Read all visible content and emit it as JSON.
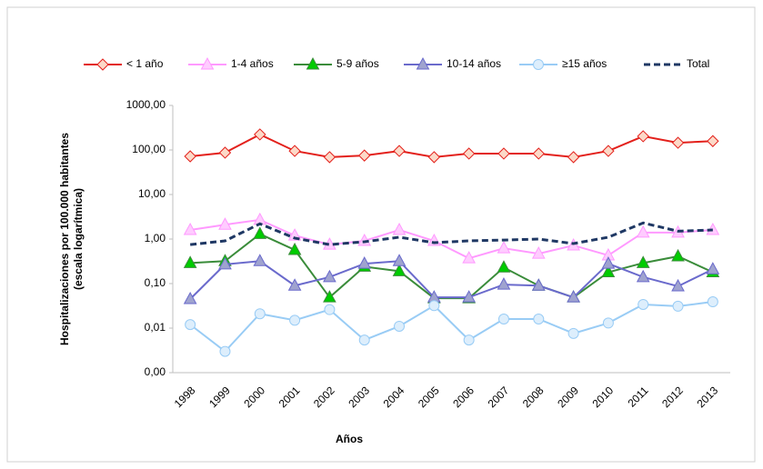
{
  "chart_data": {
    "type": "line",
    "xlabel": "Años",
    "ylabel": [
      "Hospitalizaciones  por 100.000 habitantes",
      "(escala logarítmica)"
    ],
    "categories": [
      "1998",
      "1999",
      "2000",
      "2001",
      "2002",
      "2003",
      "2004",
      "2005",
      "2006",
      "2007",
      "2008",
      "2009",
      "2010",
      "2011",
      "2012",
      "2013"
    ],
    "log_scale": true,
    "ylim": [
      0.001,
      1000
    ],
    "yticks": [
      {
        "value": 0.001,
        "label": "0,00"
      },
      {
        "value": 0.01,
        "label": "0,01"
      },
      {
        "value": 0.1,
        "label": "0,10"
      },
      {
        "value": 1,
        "label": "1,00"
      },
      {
        "value": 10,
        "label": "10,00"
      },
      {
        "value": 100,
        "label": "100,00"
      },
      {
        "value": 1000,
        "label": "1000,00"
      }
    ],
    "legend": "top",
    "series": [
      {
        "name": "< 1 año",
        "color": "#e3201b",
        "marker": "diamond",
        "marker_fill": "#fcd9c8",
        "values": [
          72,
          87,
          223,
          95,
          69,
          75,
          95,
          69,
          83,
          83,
          83,
          69,
          95,
          203,
          145,
          158
        ]
      },
      {
        "name": "1-4 años",
        "color": "#ff99ff",
        "marker": "triangle",
        "marker_fill": "#ffccff",
        "values": [
          1.6,
          2.1,
          2.7,
          1.2,
          0.75,
          0.91,
          1.6,
          0.91,
          0.37,
          0.62,
          0.47,
          0.72,
          0.43,
          1.4,
          1.4,
          1.6
        ]
      },
      {
        "name": "5-9 años",
        "color": "#3a8c3a",
        "marker": "triangle",
        "marker_fill": "#00cc00",
        "values": [
          0.29,
          0.32,
          1.3,
          0.57,
          0.049,
          0.24,
          0.19,
          0.047,
          0.047,
          0.23,
          0.09,
          0.049,
          0.18,
          0.29,
          0.41,
          0.18
        ]
      },
      {
        "name": "10-14 años",
        "color": "#6a6acc",
        "marker": "triangle",
        "marker_fill": "#9fa3cf",
        "values": [
          0.045,
          0.27,
          0.32,
          0.09,
          0.14,
          0.28,
          0.32,
          0.049,
          0.049,
          0.095,
          0.09,
          0.049,
          0.28,
          0.14,
          0.087,
          0.21
        ]
      },
      {
        "name": "≥15 años",
        "color": "#99ccf5",
        "marker": "circle",
        "marker_fill": "#ddeefc",
        "values": [
          0.012,
          0.003,
          0.021,
          0.015,
          0.026,
          0.0054,
          0.011,
          0.032,
          0.0054,
          0.016,
          0.016,
          0.0076,
          0.013,
          0.034,
          0.031,
          0.039
        ]
      },
      {
        "name": "Total",
        "color": "#1f3864",
        "dashed": true,
        "values": [
          0.75,
          0.91,
          2.2,
          1.05,
          0.75,
          0.87,
          1.1,
          0.83,
          0.91,
          0.95,
          1.0,
          0.79,
          1.1,
          2.3,
          1.5,
          1.6
        ]
      }
    ]
  }
}
